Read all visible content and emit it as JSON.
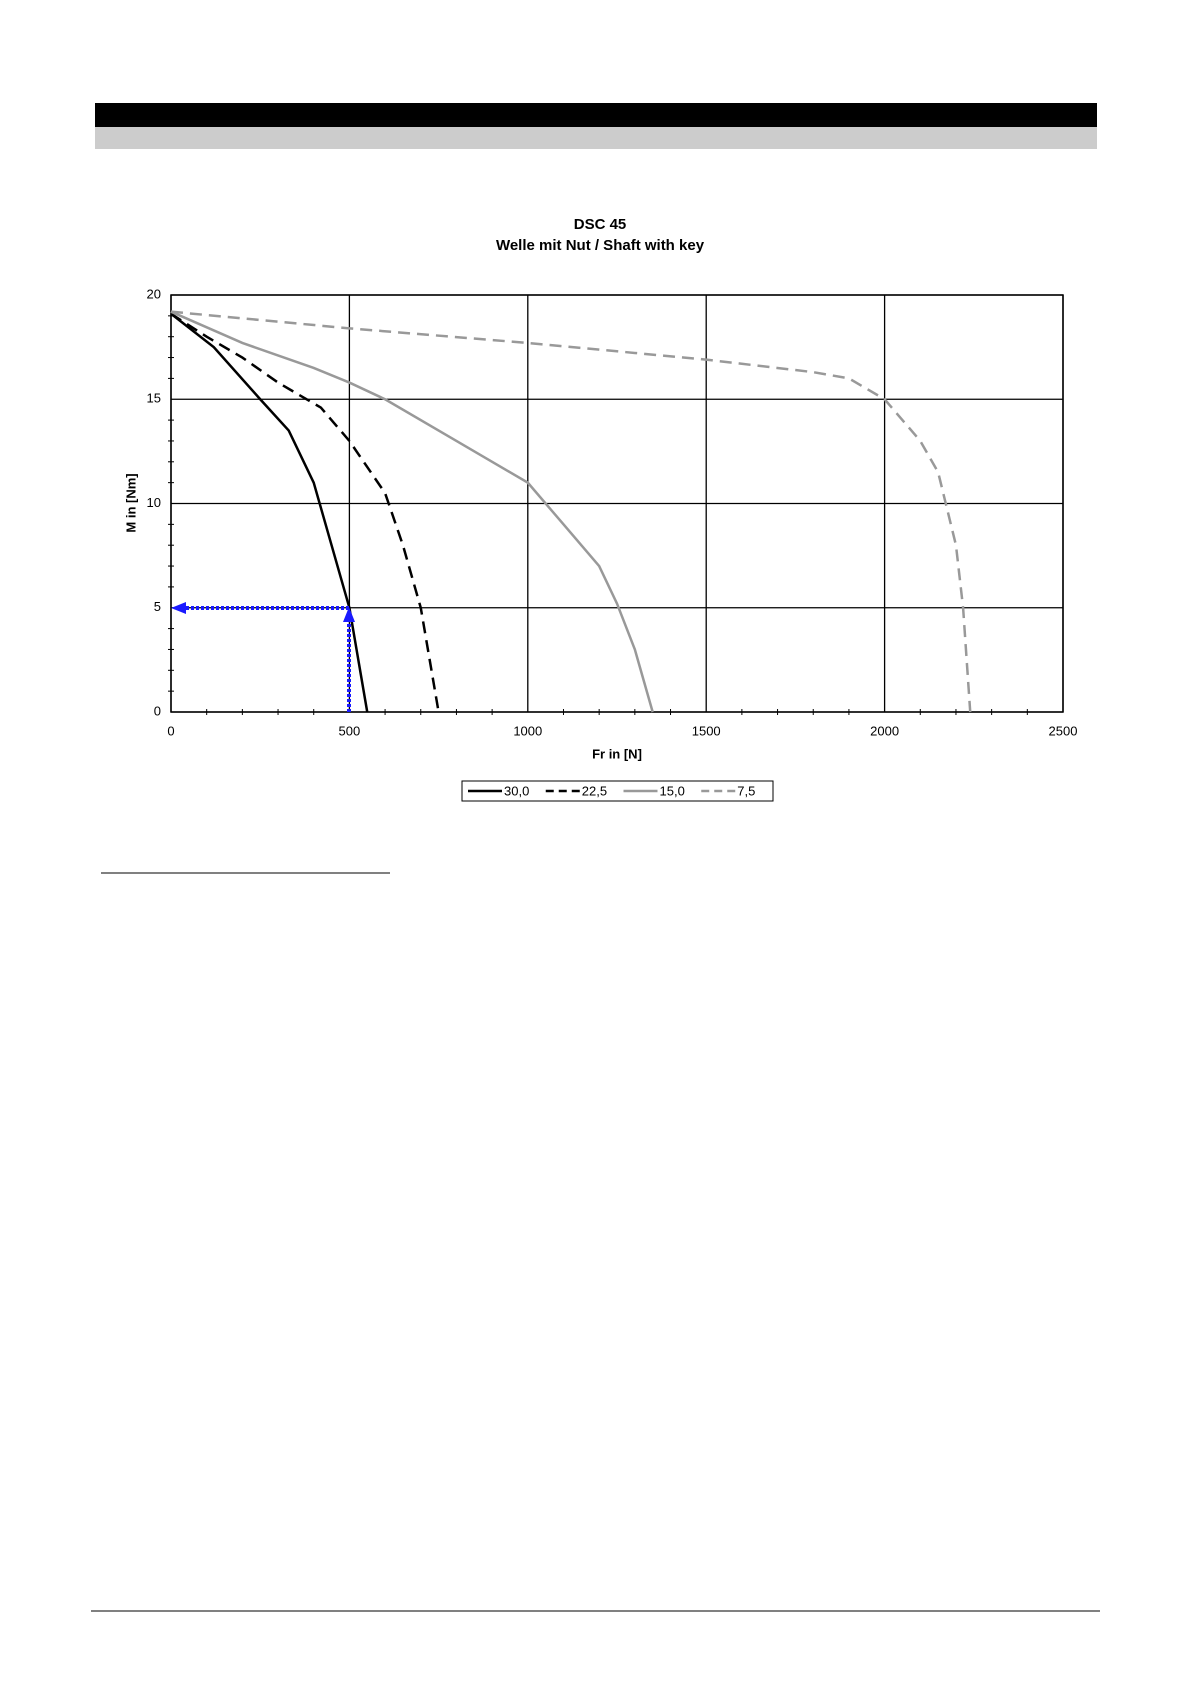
{
  "chart_data": {
    "type": "line",
    "title": "DSC 45",
    "subtitle": "Welle mit Nut / Shaft with key",
    "x_label": "Fr in [N]",
    "y_label": "M in [Nm]",
    "xlim": [
      0,
      2500
    ],
    "xticks": [
      0,
      500,
      1000,
      1500,
      2000,
      2500
    ],
    "ylim": [
      0,
      20
    ],
    "yticks": [
      0,
      5,
      10,
      15,
      20
    ],
    "grid": true,
    "legend": "bottom",
    "series": [
      {
        "name": "30,0",
        "color": "#000000",
        "dash": "solid",
        "x": [
          0,
          120,
          250,
          330,
          400,
          450,
          500,
          550
        ],
        "values": [
          19.1,
          17.5,
          15,
          13.5,
          11,
          8,
          5,
          0
        ]
      },
      {
        "name": "22,5",
        "color": "#000000",
        "dash": "dashed",
        "x": [
          0,
          100,
          200,
          300,
          420,
          500,
          600,
          650,
          700,
          750
        ],
        "values": [
          19.1,
          18,
          17,
          15.8,
          14.6,
          13,
          10.5,
          8,
          5,
          0
        ]
      },
      {
        "name": "15,0",
        "color": "#999999",
        "dash": "solid",
        "x": [
          0,
          200,
          400,
          500,
          600,
          800,
          1000,
          1100,
          1200,
          1250,
          1300,
          1350
        ],
        "values": [
          19.2,
          17.7,
          16.5,
          15.8,
          15,
          13,
          11,
          9,
          7,
          5.2,
          3,
          0
        ]
      },
      {
        "name": "7,5",
        "color": "#999999",
        "dash": "dashed",
        "x": [
          0,
          500,
          1000,
          1500,
          1800,
          1900,
          2000,
          2100,
          2150,
          2200,
          2220,
          2240
        ],
        "values": [
          19.2,
          18.4,
          17.7,
          16.9,
          16.3,
          16,
          15,
          13,
          11.5,
          8,
          5,
          0
        ]
      }
    ]
  }
}
